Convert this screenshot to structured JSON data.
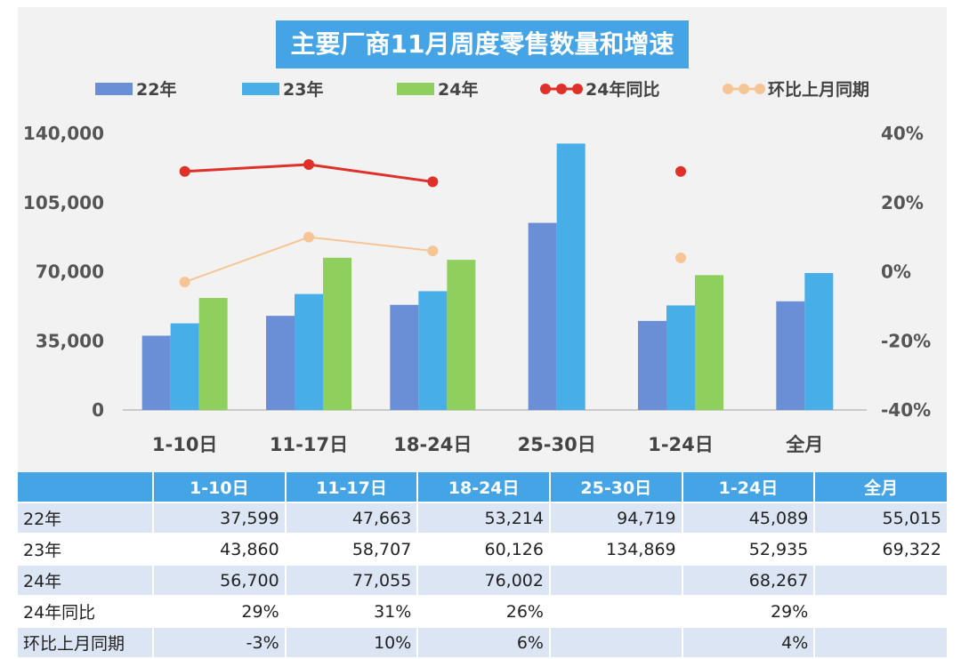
{
  "colors": {
    "y22": "#6b8fd6",
    "y23": "#48aee8",
    "y24": "#8fcf5e",
    "yoy": "#e0302a",
    "mom": "#f7c595",
    "header_bg": "#44a4e6"
  },
  "chart_data": {
    "type": "bar",
    "title": "主要厂商11月周度零售数量和增速",
    "categories": [
      "1-10日",
      "11-17日",
      "18-24日",
      "25-30日",
      "1-24日",
      "全月"
    ],
    "series": [
      {
        "name": "22年",
        "values": [
          37599,
          47663,
          53214,
          94719,
          45089,
          55015
        ]
      },
      {
        "name": "23年",
        "values": [
          43860,
          58707,
          60126,
          134869,
          52935,
          69322
        ]
      },
      {
        "name": "24年",
        "values": [
          56700,
          77055,
          76002,
          null,
          68267,
          null
        ]
      }
    ],
    "line_series": [
      {
        "name": "24年同比",
        "axis": "right",
        "values": [
          29,
          31,
          26,
          null,
          29,
          null
        ]
      },
      {
        "name": "环比上月同期",
        "axis": "right",
        "values": [
          -3,
          10,
          6,
          null,
          4,
          null
        ]
      }
    ],
    "y_left": {
      "min": 0,
      "max": 140000,
      "ticks": [
        "0",
        "35,000",
        "70,000",
        "105,000",
        "140,000"
      ]
    },
    "y_right": {
      "min": -40,
      "max": 40,
      "ticks": [
        "-40%",
        "-20%",
        "0%",
        "20%",
        "40%"
      ]
    },
    "legend_position": "top",
    "grid": false
  },
  "table": {
    "header": [
      "",
      "1-10日",
      "11-17日",
      "18-24日",
      "25-30日",
      "1-24日",
      "全月"
    ],
    "rows": [
      [
        "22年",
        "37,599",
        "47,663",
        "53,214",
        "94,719",
        "45,089",
        "55,015"
      ],
      [
        "23年",
        "43,860",
        "58,707",
        "60,126",
        "134,869",
        "52,935",
        "69,322"
      ],
      [
        "24年",
        "56,700",
        "77,055",
        "76,002",
        "",
        "68,267",
        ""
      ],
      [
        "24年同比",
        "29%",
        "31%",
        "26%",
        "",
        "29%",
        ""
      ],
      [
        "环比上月同期",
        "-3%",
        "10%",
        "6%",
        "",
        "4%",
        ""
      ]
    ]
  }
}
